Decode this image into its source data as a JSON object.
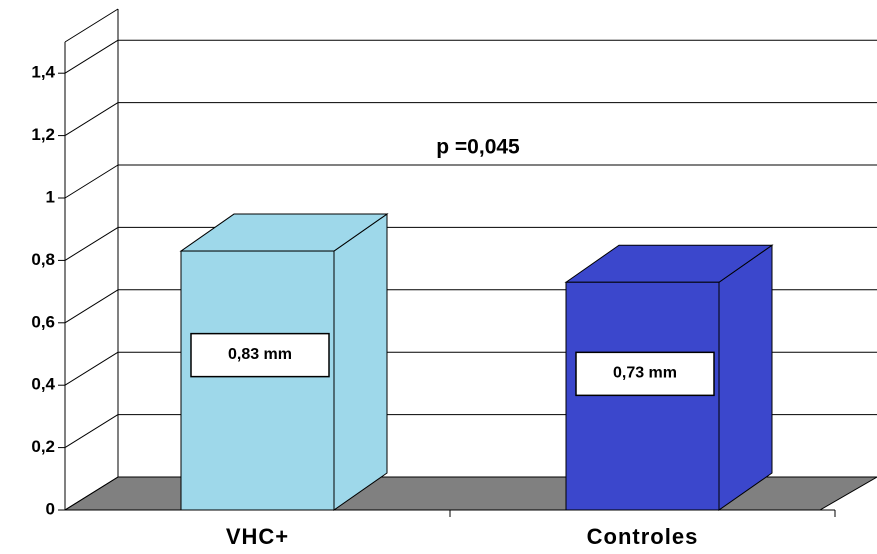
{
  "chart_data": {
    "type": "bar3d",
    "categories": [
      "VHC+",
      "Controles"
    ],
    "values": [
      0.83,
      0.73
    ],
    "value_labels": [
      "0,83 mm",
      "0,73 mm"
    ],
    "colors": [
      "#9ed8ea",
      "#3b47cc"
    ],
    "annotation": "p =0,045",
    "ylim": [
      0,
      1.5
    ],
    "yticks": [
      0,
      {
        "value": 0.2,
        "label": "0,2"
      },
      {
        "value": 0.4,
        "label": "0,4"
      },
      {
        "value": 0.6,
        "label": "0,6"
      },
      {
        "value": 0.8,
        "label": "0,8"
      },
      1,
      {
        "value": 1.2,
        "label": "1,2"
      },
      {
        "value": 1.4,
        "label": "1,4"
      }
    ],
    "grid": true
  }
}
